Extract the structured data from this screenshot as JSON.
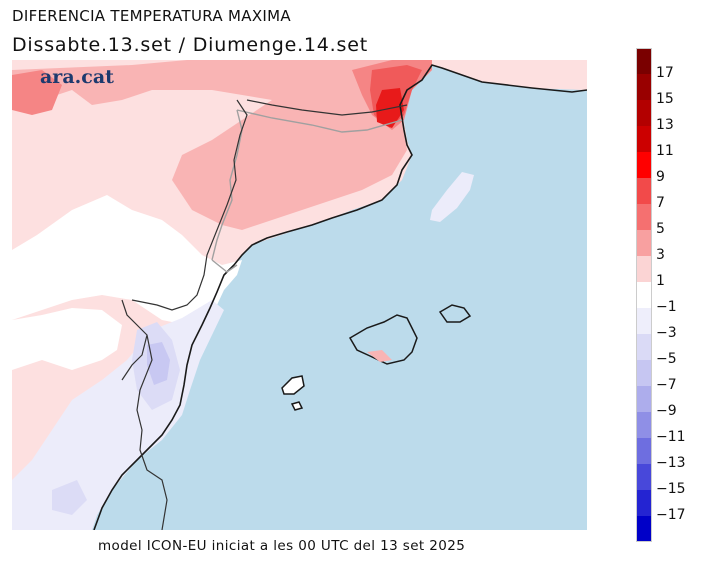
{
  "title": "DIFERENCIA TEMPERATURA MAXIMA",
  "subtitle": "Dissabte.13.set / Diumenge.14.set",
  "logo": "ara.cat",
  "footer": "model ICON-EU iniciat a les 00 UTC del 13 set 2025",
  "colors": {
    "sea": "#bcdbeb",
    "land_neutral": "#ffffff",
    "warm_1": "#fde0e0",
    "warm_3": "#f9b4b4",
    "warm_5": "#f58585",
    "warm_7": "#f05a5a",
    "warm_9": "#e81a1a",
    "cool_1": "#ececfa",
    "cool_3": "#dcdcf6",
    "cool_5": "#c8c8f2",
    "coast": "#1a1a1a",
    "border": "#a0a0a0"
  },
  "colorbar": {
    "bins": [
      {
        "color": "#7a0000"
      },
      {
        "color": "#990000"
      },
      {
        "color": "#b30000"
      },
      {
        "color": "#cc0000"
      },
      {
        "color": "#ff0000"
      },
      {
        "color": "#f24a4a"
      },
      {
        "color": "#f57070"
      },
      {
        "color": "#f8a0a0"
      },
      {
        "color": "#fbd4d4"
      },
      {
        "color": "#ffffff"
      },
      {
        "color": "#eeeefb"
      },
      {
        "color": "#dadaf6"
      },
      {
        "color": "#c6c6f2"
      },
      {
        "color": "#adadec"
      },
      {
        "color": "#8f8fe6"
      },
      {
        "color": "#6e6ee0"
      },
      {
        "color": "#4848da"
      },
      {
        "color": "#2424d2"
      },
      {
        "color": "#0000c8"
      }
    ],
    "labels": [
      "17",
      "15",
      "13",
      "11",
      "9",
      "7",
      "5",
      "3",
      "1",
      "−1",
      "−3",
      "−5",
      "−7",
      "−9",
      "−11",
      "−13",
      "−15",
      "−17"
    ]
  }
}
